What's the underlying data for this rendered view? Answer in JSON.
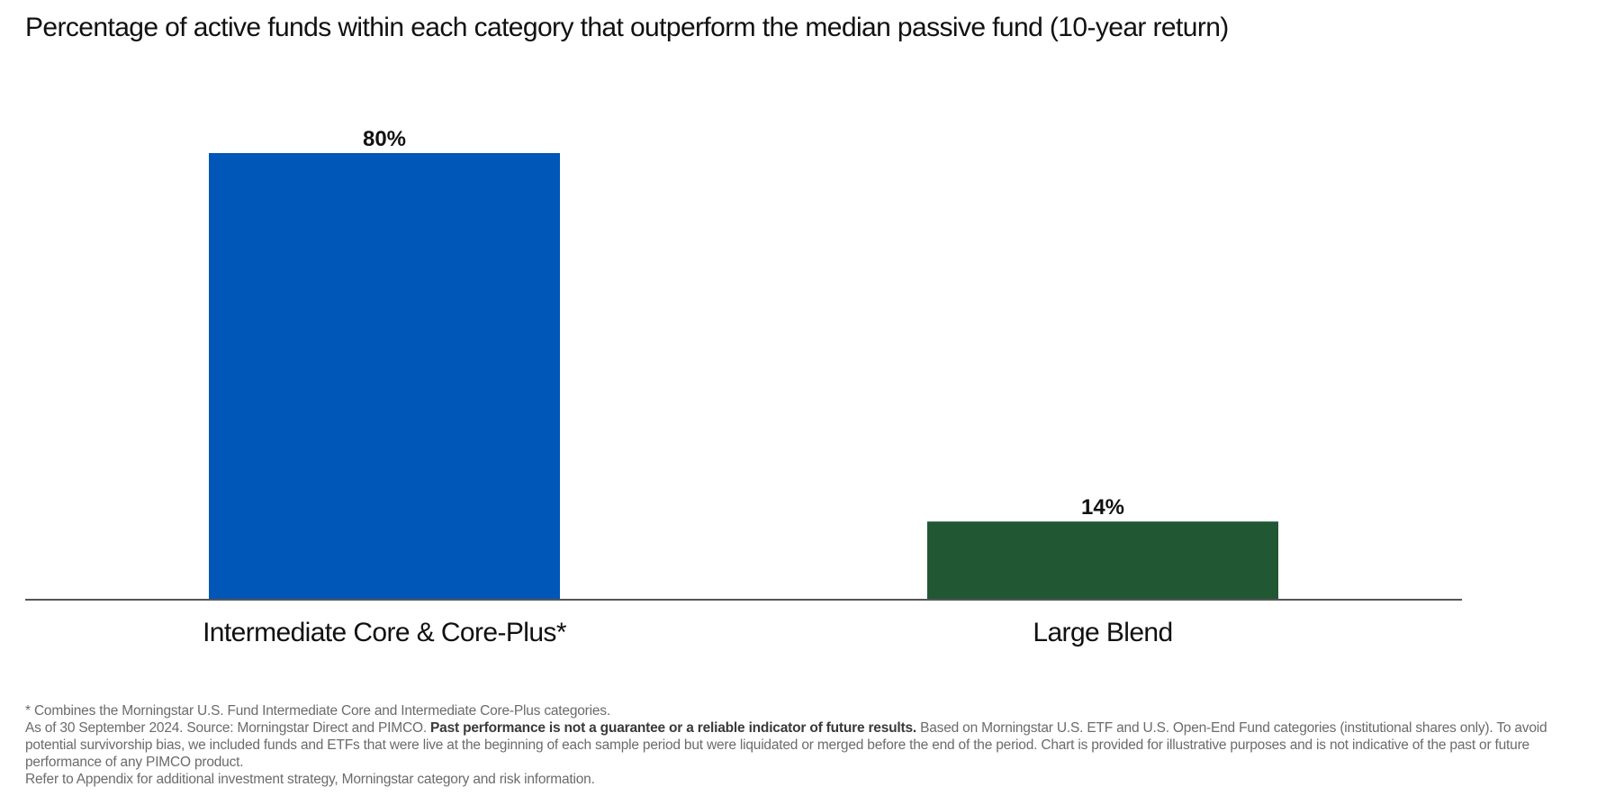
{
  "chart_data": {
    "type": "bar",
    "title": "Percentage of active funds within each category that outperform the median passive fund (10-year return)",
    "categories": [
      "Intermediate Core & Core-Plus*",
      "Large Blend"
    ],
    "values": [
      80,
      14
    ],
    "data_labels": [
      "80%",
      "14%"
    ],
    "colors": [
      "#0057B8",
      "#215732"
    ],
    "ylim": [
      0,
      80
    ],
    "grid": false,
    "legend": "none"
  },
  "footnotes": {
    "asterisk_note": "* Combines the Morningstar U.S. Fund Intermediate Core and Intermediate Core-Plus categories.",
    "source_prefix": "As of 30 September 2024. Source: Morningstar Direct and PIMCO.",
    "disclaimer_bold": "Past performance is not a guarantee or a reliable indicator of future results.",
    "source_rest": "Based on Morningstar U.S. ETF and U.S. Open-End Fund categories (institutional shares only). To avoid potential survivorship bias, we included funds and ETFs that were live at the beginning of each sample period but were liquidated or merged before the end of the period. Chart is provided for illustrative purposes and is not indicative of the past or future performance of any PIMCO product.",
    "appendix_note": "Refer to Appendix for additional investment strategy, Morningstar category and risk information."
  }
}
